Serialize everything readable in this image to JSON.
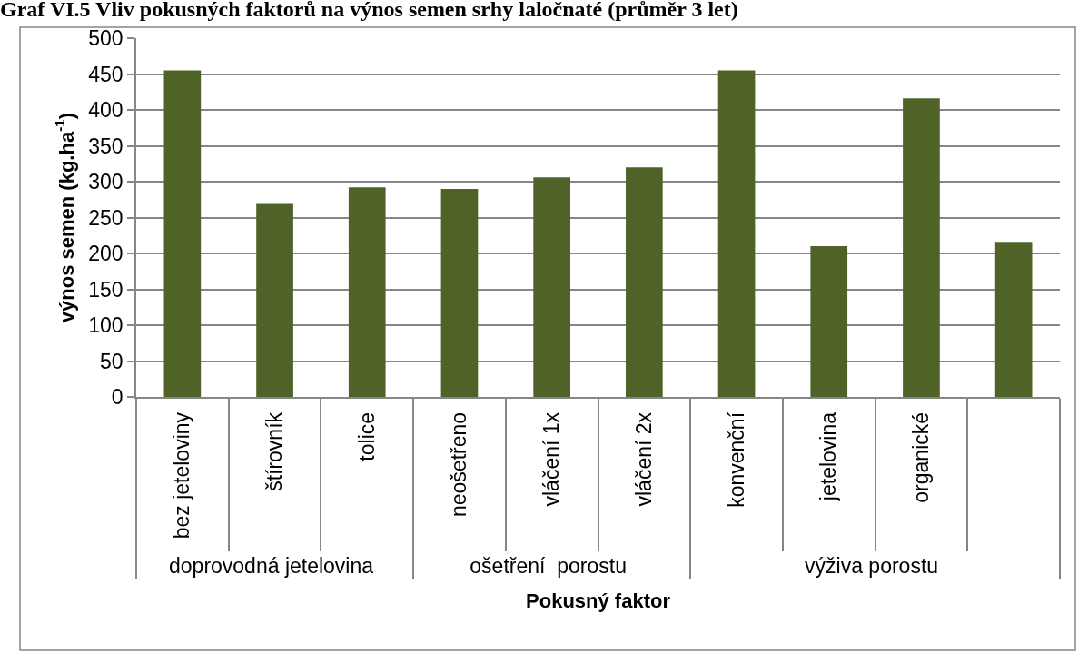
{
  "chart_data": {
    "type": "bar",
    "title": "Graf VI.5 Vliv pokusných faktorů na výnos semen srhy laločnaté (průměr 3 let)",
    "xlabel": "Pokusný faktor",
    "ylabel": "výnos semen (kg.ha$^{-1}$)",
    "categories": [
      "bez jeteloviny",
      "štírovník",
      "tolice",
      "neošetřeno",
      "vláčení 1x",
      "vláčení 2x",
      "konvenční",
      "jetelovina",
      "organické",
      null
    ],
    "annotations": [
      "doprovodná jetelovina",
      "ošetření  porostu",
      "výživa porostu"
    ],
    "values": [
      455,
      269,
      292,
      290,
      306,
      320,
      455,
      210,
      416,
      216
    ],
    "color": "#4f6228",
    "ylim": [
      0,
      500
    ],
    "yticks": [
      0,
      50,
      100,
      150,
      200,
      250,
      300,
      350,
      400,
      450,
      500
    ],
    "grid": "y"
  }
}
